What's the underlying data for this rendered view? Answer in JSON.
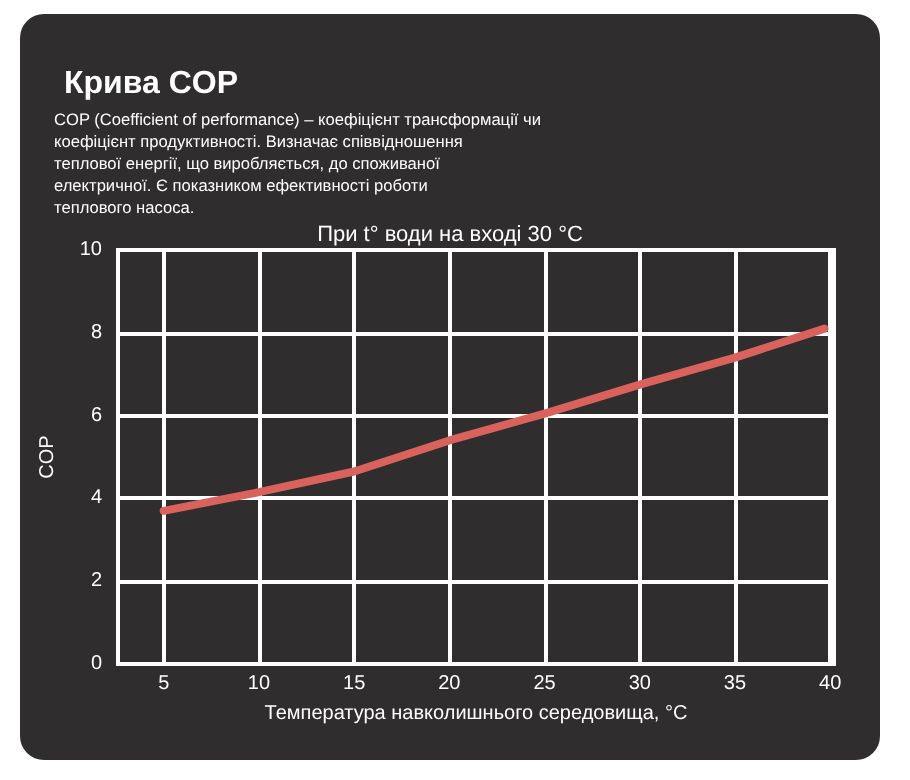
{
  "chart_data": {
    "type": "line",
    "title": "Крива COP",
    "annotations": [
      "COP (Coefficient of performance) – коефіцієнт трансформації чи коефіцієнт продуктивності. Визначає співвідношення теплової енергії, що виробляється, до споживаної електричної. Є показником ефективності роботи теплового насоса."
    ],
    "subtitle": "При t° води на вході 30 °C",
    "xlabel": "Температура навколишнього середовища, °C",
    "ylabel": "COP",
    "x": [
      5,
      10,
      15,
      20,
      25,
      30,
      35,
      39.7
    ],
    "series": [
      {
        "color": "#d9625c",
        "values": [
          3.7,
          4.15,
          4.65,
          5.4,
          6.05,
          6.75,
          7.4,
          8.1
        ]
      }
    ],
    "xlim": [
      2.6,
      40.2
    ],
    "xticks": [
      5,
      10,
      15,
      20,
      25,
      30,
      35,
      40
    ],
    "ylim": [
      0,
      10
    ],
    "yticks": [
      0,
      2,
      4,
      6,
      8,
      10
    ],
    "grid": true,
    "marker": "none",
    "line_style": "solid"
  }
}
